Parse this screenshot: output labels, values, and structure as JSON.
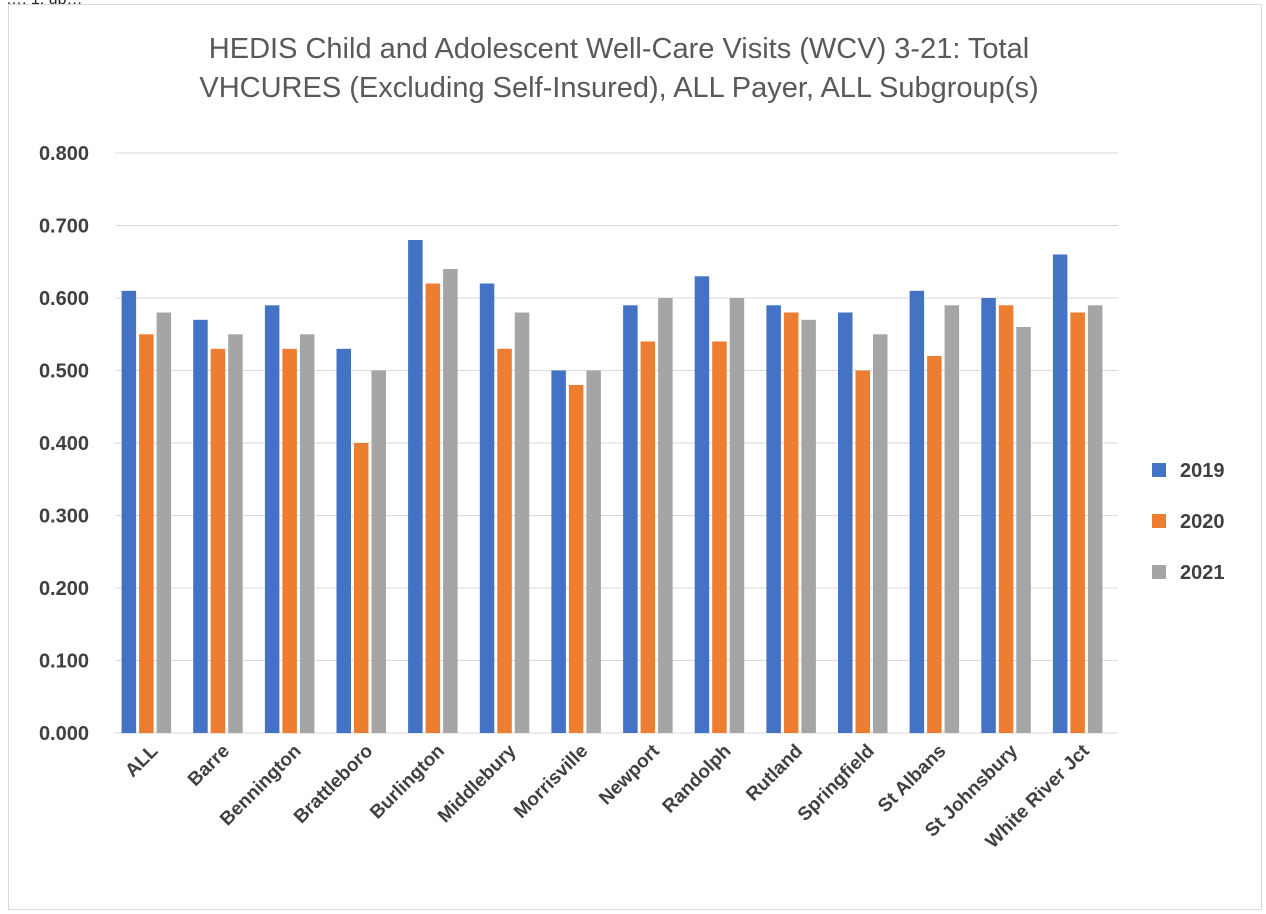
{
  "clip_text": "…, 1, up…",
  "chart_data": {
    "type": "bar",
    "title": "HEDIS Child and Adolescent Well-Care Visits (WCV) 3-21: Total VHCURES (Excluding Self-Insured), ALL Payer, ALL Subgroup(s)",
    "title_lines": [
      "HEDIS Child and Adolescent Well-Care Visits (WCV) 3-21: Total",
      "VHCURES (Excluding Self-Insured), ALL Payer, ALL Subgroup(s)"
    ],
    "xlabel": "",
    "ylabel": "",
    "ylim": [
      0,
      0.8
    ],
    "yticks": [
      "0.000",
      "0.100",
      "0.200",
      "0.300",
      "0.400",
      "0.500",
      "0.600",
      "0.700",
      "0.800"
    ],
    "grid": true,
    "legend_position": "right",
    "categories": [
      "ALL",
      "Barre",
      "Bennington",
      "Brattleboro",
      "Burlington",
      "Middlebury",
      "Morrisville",
      "Newport",
      "Randolph",
      "Rutland",
      "Springfield",
      "St Albans",
      "St Johnsbury",
      "White River Jct"
    ],
    "series": [
      {
        "name": "2019",
        "color": "#4472c4",
        "values": [
          0.61,
          0.57,
          0.59,
          0.53,
          0.68,
          0.62,
          0.5,
          0.59,
          0.63,
          0.59,
          0.58,
          0.61,
          0.6,
          0.66
        ]
      },
      {
        "name": "2020",
        "color": "#ed7d31",
        "values": [
          0.55,
          0.53,
          0.53,
          0.4,
          0.62,
          0.53,
          0.48,
          0.54,
          0.54,
          0.58,
          0.5,
          0.52,
          0.59,
          0.58
        ]
      },
      {
        "name": "2021",
        "color": "#a5a5a5",
        "values": [
          0.58,
          0.55,
          0.55,
          0.5,
          0.64,
          0.58,
          0.5,
          0.6,
          0.6,
          0.57,
          0.55,
          0.59,
          0.56,
          0.59
        ]
      }
    ],
    "gridline_color": "#d9d9d9"
  }
}
